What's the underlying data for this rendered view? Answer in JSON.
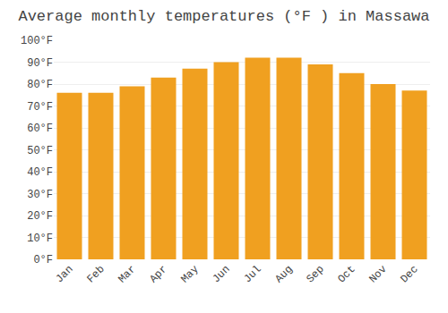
{
  "chart_data": {
    "type": "bar",
    "title": "Average monthly temperatures (°F ) in Massawa",
    "categories": [
      "Jan",
      "Feb",
      "Mar",
      "Apr",
      "May",
      "Jun",
      "Jul",
      "Aug",
      "Sep",
      "Oct",
      "Nov",
      "Dec"
    ],
    "values": [
      76,
      76,
      79,
      83,
      87,
      90,
      92,
      92,
      89,
      85,
      80,
      77
    ],
    "color": "#F0A020",
    "ylim": [
      0,
      100
    ],
    "yticks": [
      {
        "value": 0,
        "label": "0°F"
      },
      {
        "value": 10,
        "label": "10°F"
      },
      {
        "value": 20,
        "label": "20°F"
      },
      {
        "value": 30,
        "label": "30°F"
      },
      {
        "value": 40,
        "label": "40°F"
      },
      {
        "value": 50,
        "label": "50°F"
      },
      {
        "value": 60,
        "label": "60°F"
      },
      {
        "value": 70,
        "label": "70°F"
      },
      {
        "value": 80,
        "label": "80°F"
      },
      {
        "value": 90,
        "label": "90°F"
      },
      {
        "value": 100,
        "label": "100°F"
      }
    ],
    "grid": true
  }
}
